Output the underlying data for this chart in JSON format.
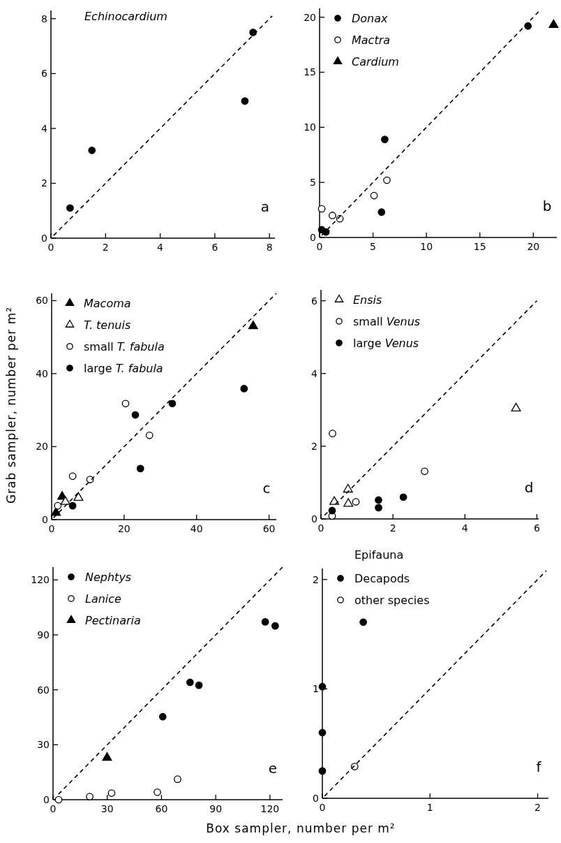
{
  "chart_data": [
    {
      "type": "scatter",
      "title": "Echinocardium",
      "annotations": [
        "a"
      ],
      "xlim": [
        0,
        8.2
      ],
      "ylim": [
        0,
        8.3
      ],
      "xticks": [
        0,
        2,
        4,
        6,
        8
      ],
      "yticks": [
        0,
        2,
        4,
        6,
        8
      ],
      "series": [
        {
          "color": "#000000",
          "marker": "circle",
          "x": [
            0.7,
            1.5,
            7.1,
            7.4
          ],
          "values": [
            1.1,
            3.2,
            5.0,
            7.5
          ]
        },
        {
          "type": "line",
          "color": "#000000",
          "line_style": "dashed",
          "x": [
            0.1,
            8.1
          ],
          "values": [
            0.1,
            8.1
          ]
        }
      ]
    },
    {
      "type": "scatter",
      "legend": "top left",
      "annotations": [
        "b"
      ],
      "xlim": [
        0,
        22.2
      ],
      "ylim": [
        0,
        20.8
      ],
      "xticks": [
        0,
        5,
        10,
        15,
        20
      ],
      "yticks": [
        0,
        5,
        10,
        15,
        20
      ],
      "series": [
        {
          "name": "Donax",
          "color": "#000000",
          "marker": "circle",
          "x": [
            19.5,
            6.1,
            5.8,
            0.2,
            0.6
          ],
          "values": [
            19.2,
            8.9,
            2.3,
            0.7,
            0.5
          ]
        },
        {
          "name": "Mactra",
          "color": "#ffffff",
          "marker": "circle",
          "x": [
            0.2,
            1.2,
            1.9,
            5.1,
            6.3
          ],
          "values": [
            2.6,
            2.0,
            1.7,
            3.8,
            5.2
          ]
        },
        {
          "name": "Cardium",
          "color": "#000000",
          "marker": "triangle",
          "x": [
            21.9
          ],
          "values": [
            19.3
          ]
        },
        {
          "type": "line",
          "color": "#000000",
          "line_style": "dashed",
          "x": [
            0.2,
            20.5
          ],
          "values": [
            0.2,
            20.5
          ]
        }
      ]
    },
    {
      "type": "scatter",
      "legend": "top left",
      "ylabel": "Grab sampler, number per m²",
      "annotations": [
        "c"
      ],
      "xlim": [
        0,
        62
      ],
      "ylim": [
        0,
        62
      ],
      "xticks": [
        0,
        20,
        40,
        60
      ],
      "yticks": [
        0,
        20,
        40,
        60
      ],
      "series": [
        {
          "name": "Macoma",
          "color": "#000000",
          "marker": "triangle",
          "x": [
            55.6,
            2.9,
            1.2
          ],
          "values": [
            53,
            6.3,
            1.9
          ]
        },
        {
          "name": "T. tenuis",
          "color": "#ffffff",
          "marker": "triangle",
          "x": [
            3.8,
            7.4
          ],
          "values": [
            4.9,
            6.0
          ]
        },
        {
          "name": "small T. fabula",
          "color": "#ffffff",
          "marker": "circle",
          "x": [
            1.7,
            5.8,
            10.6,
            20.4,
            27.0
          ],
          "values": [
            3.8,
            11.9,
            11.0,
            31.8,
            23.1
          ]
        },
        {
          "name": "large T. fabula",
          "color": "#000000",
          "marker": "circle",
          "x": [
            5.8,
            23.1,
            24.5,
            33.3,
            53.1
          ],
          "values": [
            3.8,
            28.7,
            14.0,
            31.8,
            35.9
          ]
        },
        {
          "type": "line",
          "color": "#000000",
          "line_style": "dashed",
          "x": [
            0.5,
            62
          ],
          "values": [
            0.5,
            62
          ]
        }
      ]
    },
    {
      "type": "scatter",
      "legend": "top left",
      "annotations": [
        "d"
      ],
      "xlim": [
        0,
        6.05
      ],
      "ylim": [
        0,
        6.3
      ],
      "xticks": [
        0,
        2,
        4,
        6
      ],
      "yticks": [
        0,
        2,
        4,
        6
      ],
      "series": [
        {
          "name": "Ensis",
          "color": "#ffffff",
          "marker": "triangle",
          "x": [
            5.42,
            0.37,
            0.75,
            0.76
          ],
          "values": [
            3.04,
            0.47,
            0.81,
            0.42
          ]
        },
        {
          "name": "small Venus",
          "color": "#ffffff",
          "marker": "circle",
          "x": [
            0.32,
            0.31,
            0.97,
            2.88
          ],
          "values": [
            2.35,
            0.08,
            0.47,
            1.31
          ]
        },
        {
          "name": "large Venus",
          "color": "#000000",
          "marker": "circle",
          "x": [
            0.31,
            1.6,
            1.6,
            2.29
          ],
          "values": [
            0.23,
            0.52,
            0.31,
            0.6
          ]
        },
        {
          "type": "line",
          "color": "#000000",
          "line_style": "dashed",
          "x": [
            0.1,
            6
          ],
          "values": [
            0.1,
            6
          ]
        }
      ]
    },
    {
      "type": "scatter",
      "legend": "top left",
      "xlabel": "Box sampler, number per m²",
      "annotations": [
        "e"
      ],
      "xlim": [
        0,
        127
      ],
      "ylim": [
        0,
        127
      ],
      "xticks": [
        0,
        30,
        60,
        90,
        120
      ],
      "yticks": [
        0,
        30,
        60,
        90,
        120
      ],
      "series": [
        {
          "name": "Nephtys",
          "color": "#000000",
          "marker": "circle",
          "x": [
            60.7,
            75.8,
            80.7,
            117.4,
            122.9
          ],
          "values": [
            45.3,
            64.1,
            62.5,
            97.1,
            94.9
          ]
        },
        {
          "name": "Lanice",
          "color": "#ffffff",
          "marker": "circle",
          "x": [
            3.1,
            20.3,
            32.4,
            57.7,
            68.9
          ],
          "values": [
            0,
            1.7,
            3.6,
            4.1,
            11.2
          ]
        },
        {
          "name": "Pectinaria",
          "color": "#000000",
          "marker": "triangle",
          "x": [
            29.9
          ],
          "values": [
            22.9
          ]
        },
        {
          "type": "line",
          "color": "#000000",
          "line_style": "dashed",
          "x": [
            3,
            127
          ],
          "values": [
            3,
            127
          ]
        }
      ]
    },
    {
      "type": "scatter",
      "legend": "top left",
      "legend_title": "Epifauna",
      "annotations": [
        "f"
      ],
      "xlim": [
        0,
        2.1
      ],
      "ylim": [
        0,
        2.1
      ],
      "xticks": [
        0,
        1,
        2
      ],
      "yticks": [
        0,
        1,
        2
      ],
      "series": [
        {
          "name": "Decapods",
          "color": "#000000",
          "marker": "circle",
          "x": [
            0,
            0,
            0,
            0.38
          ],
          "values": [
            1.02,
            0.6,
            0.25,
            1.61
          ]
        },
        {
          "name": "other species",
          "color": "#ffffff",
          "marker": "circle",
          "x": [
            0.3
          ],
          "values": [
            0.29
          ]
        },
        {
          "type": "line",
          "color": "#000000",
          "line_style": "dashed",
          "x": [
            0.02,
            2.08
          ],
          "values": [
            0.02,
            2.08
          ]
        }
      ]
    }
  ]
}
